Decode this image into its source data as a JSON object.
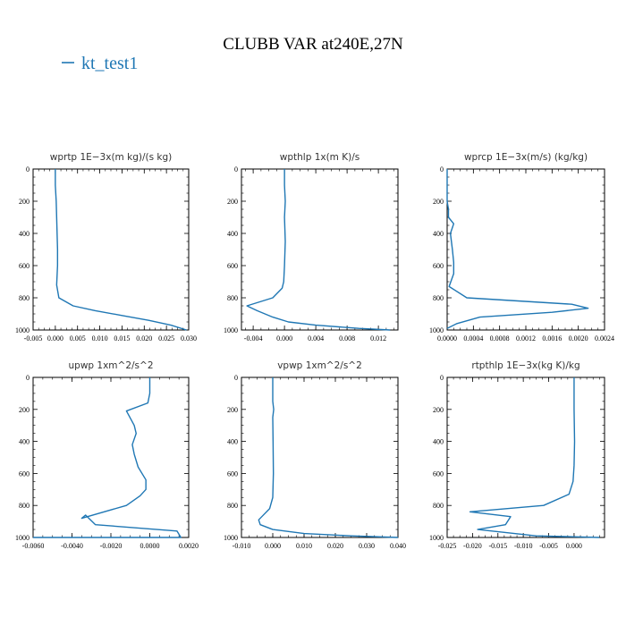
{
  "figure": {
    "title": "CLUBB VAR at240E,27N",
    "legend": {
      "label": "kt_test1",
      "color": "#1f77b4"
    }
  },
  "chart_data": [
    {
      "type": "line",
      "title": "wprtp  1E−3x(m kg)/(s kg)",
      "xlim": [
        -0.005,
        0.03
      ],
      "xticks": [
        "-0.005",
        "0.000",
        "0.005",
        "0.010",
        "0.015",
        "0.020",
        "0.025",
        "0.030"
      ],
      "ylim": [
        1000,
        0
      ],
      "yticks": [
        "0",
        "200",
        "400",
        "600",
        "800",
        "1000"
      ],
      "series": [
        {
          "color": "#1f77b4",
          "x": [
            0.0,
            0.0,
            0.0002,
            0.0003,
            0.0005,
            0.0005,
            0.0003,
            0.0008,
            0.004,
            0.009,
            0.015,
            0.021,
            0.026,
            0.0295
          ],
          "y": [
            0,
            100,
            200,
            300,
            500,
            600,
            720,
            800,
            850,
            880,
            910,
            940,
            970,
            1000
          ]
        }
      ]
    },
    {
      "type": "line",
      "title": "wpthlp  1x(m K)/s",
      "xlim": [
        -0.0055,
        0.0145
      ],
      "xticks": [
        "-0.004",
        "0.000",
        "0.004",
        "0.008",
        "0.012"
      ],
      "ylim": [
        1000,
        0
      ],
      "yticks": [
        "0",
        "200",
        "400",
        "600",
        "800",
        "1000"
      ],
      "series": [
        {
          "color": "#1f77b4",
          "x": [
            0.0,
            0.0,
            0.0001,
            0.0,
            0.0001,
            0.0,
            -0.0001,
            -0.0003,
            -0.0015,
            -0.0048,
            -0.0035,
            -0.0015,
            0.0005,
            0.004,
            0.0095,
            0.0135
          ],
          "y": [
            0,
            100,
            200,
            300,
            450,
            600,
            700,
            740,
            800,
            850,
            880,
            920,
            950,
            970,
            990,
            1000
          ]
        }
      ]
    },
    {
      "type": "line",
      "title": "wprcp  1E−3x(m/s) (kg/kg)",
      "xlim": [
        0,
        0.0024
      ],
      "xticks": [
        "0.0000",
        "0.0004",
        "0.0008",
        "0.0012",
        "0.0016",
        "0.0020",
        "0.0024"
      ],
      "ylim": [
        1000,
        0
      ],
      "yticks": [
        "0",
        "200",
        "400",
        "600",
        "800",
        "1000"
      ],
      "series": [
        {
          "color": "#1f77b4",
          "x": [
            0.0,
            0.0,
            2e-05,
            2e-05,
            0.0001,
            5e-05,
            8e-05,
            0.0001,
            0.0001,
            3e-05,
            0.0003,
            0.0019,
            0.00215,
            0.0016,
            0.0005,
            0.00015,
            0.0
          ],
          "y": [
            0,
            200,
            250,
            300,
            340,
            400,
            500,
            580,
            650,
            730,
            800,
            840,
            865,
            890,
            920,
            960,
            990
          ]
        }
      ]
    },
    {
      "type": "line",
      "title": "upwp  1xm^2/s^2",
      "xlim": [
        -0.006,
        0.002
      ],
      "xticks": [
        "-0.0060",
        "-0.0040",
        "-0.0020",
        "0.0000",
        "0.0020"
      ],
      "ylim": [
        1000,
        0
      ],
      "yticks": [
        "0",
        "200",
        "400",
        "600",
        "800",
        "1000"
      ],
      "series": [
        {
          "color": "#1f77b4",
          "x": [
            0.0,
            0.0,
            -0.0001,
            -0.0012,
            -0.0008,
            -0.0007,
            -0.0009,
            -0.0008,
            -0.0006,
            -0.0002,
            -0.0002,
            -0.0005,
            -0.0012,
            -0.0035,
            -0.0033,
            -0.0028,
            0.0014,
            0.0016,
            -0.006
          ],
          "y": [
            0,
            100,
            160,
            210,
            300,
            350,
            420,
            480,
            560,
            640,
            700,
            740,
            800,
            880,
            860,
            920,
            960,
            1000,
            1000
          ]
        }
      ]
    },
    {
      "type": "line",
      "title": "vpwp  1xm^2/s^2",
      "xlim": [
        -0.01,
        0.04
      ],
      "xticks": [
        "-0.010",
        "0.000",
        "0.010",
        "0.020",
        "0.030",
        "0.040"
      ],
      "ylim": [
        1000,
        0
      ],
      "yticks": [
        "0",
        "200",
        "400",
        "600",
        "800",
        "1000"
      ],
      "series": [
        {
          "color": "#1f77b4",
          "x": [
            0.0,
            0.0,
            0.0003,
            0.0,
            0.0001,
            0.0002,
            0.0,
            -0.001,
            -0.003,
            -0.0045,
            -0.004,
            0.0,
            0.01,
            0.025,
            0.04
          ],
          "y": [
            0,
            150,
            200,
            250,
            400,
            600,
            750,
            820,
            860,
            890,
            920,
            950,
            975,
            990,
            1000
          ]
        }
      ]
    },
    {
      "type": "line",
      "title": "rtpthlp  1E−3x(kg K)/kg",
      "xlim": [
        -0.025,
        0.006
      ],
      "xticks": [
        "-0.025",
        "-0.020",
        "-0.015",
        "-0.010",
        "-0.005",
        "0.000"
      ],
      "ylim": [
        1000,
        0
      ],
      "yticks": [
        "0",
        "200",
        "400",
        "600",
        "800",
        "1000"
      ],
      "series": [
        {
          "color": "#1f77b4",
          "x": [
            0.0,
            0.0,
            0.0001,
            0.0,
            -0.0002,
            -0.001,
            -0.006,
            -0.0205,
            -0.0125,
            -0.0135,
            -0.019,
            -0.0075,
            0.005
          ],
          "y": [
            0,
            200,
            400,
            550,
            650,
            730,
            800,
            840,
            870,
            920,
            950,
            990,
            1000
          ]
        }
      ]
    }
  ]
}
